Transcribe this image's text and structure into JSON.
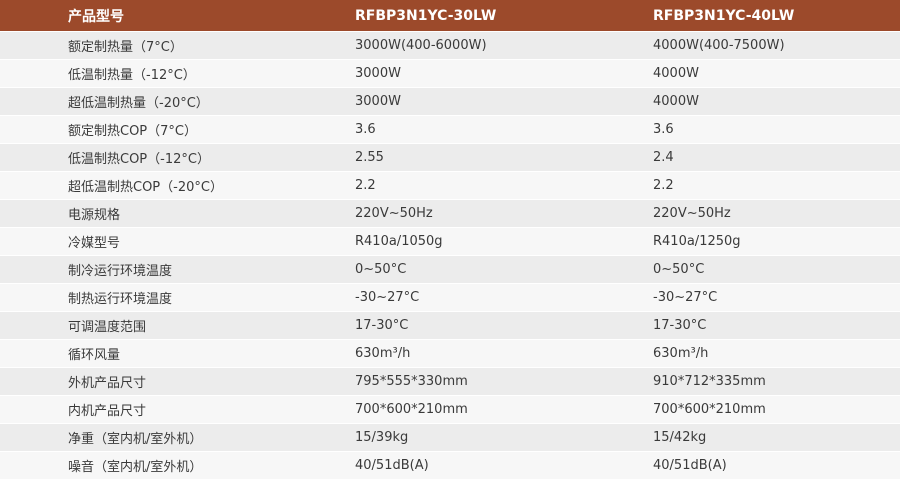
{
  "table": {
    "header": [
      "产品型号",
      "RFBP3N1YC-30LW",
      "RFBP3N1YC-40LW"
    ],
    "rows": [
      [
        "额定制热量（7°C）",
        "3000W(400-6000W)",
        "4000W(400-7500W)"
      ],
      [
        "低温制热量（-12°C）",
        "3000W",
        "4000W"
      ],
      [
        "超低温制热量（-20°C）",
        "3000W",
        "4000W"
      ],
      [
        "额定制热COP（7°C）",
        "3.6",
        "3.6"
      ],
      [
        "低温制热COP（-12°C）",
        "2.55",
        "2.4"
      ],
      [
        "超低温制热COP（-20°C）",
        "2.2",
        "2.2"
      ],
      [
        "电源规格",
        "220V~50Hz",
        "220V~50Hz"
      ],
      [
        "冷媒型号",
        "R410a/1050g",
        "R410a/1250g"
      ],
      [
        "制冷运行环境温度",
        "0~50°C",
        "0~50°C"
      ],
      [
        "制热运行环境温度",
        "-30~27°C",
        "-30~27°C"
      ],
      [
        "可调温度范围",
        "17-30°C",
        "17-30°C"
      ],
      [
        "循环风量",
        "630m³/h",
        "630m³/h"
      ],
      [
        "外机产品尺寸",
        "795*555*330mm",
        "910*712*335mm"
      ],
      [
        "内机产品尺寸",
        "700*600*210mm",
        "700*600*210mm"
      ],
      [
        "净重（室内机/室外机）",
        "15/39kg",
        "15/42kg"
      ],
      [
        "噪音（室内机/室外机）",
        "40/51dB(A)",
        "40/51dB(A)"
      ]
    ]
  }
}
